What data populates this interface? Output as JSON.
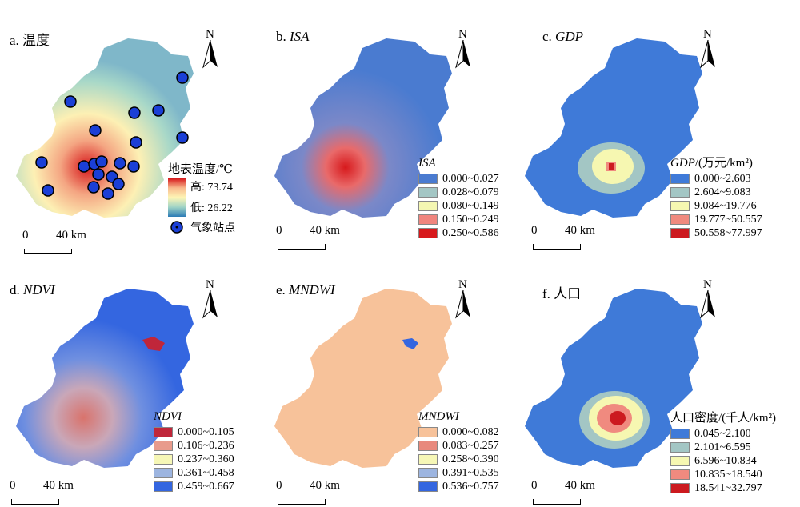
{
  "figure": {
    "panels": [
      {
        "id": "a",
        "label": "a. ",
        "title": "温度",
        "italic": false,
        "legend": {
          "title": "地表温度/℃",
          "high": "高: 73.74",
          "low": "低: 26.22",
          "station": "气象站点"
        }
      },
      {
        "id": "b",
        "label": "b. ",
        "title": "ISA",
        "italic": true,
        "legend": {
          "title": "ISA",
          "title_suffix": "",
          "classes": [
            "0.000~0.027",
            "0.028~0.079",
            "0.080~0.149",
            "0.150~0.249",
            "0.250~0.586"
          ],
          "colors": [
            "#4a7bd0",
            "#a3c6c4",
            "#f4f7b2",
            "#f0857e",
            "#d7191c"
          ]
        }
      },
      {
        "id": "c",
        "label": "c. ",
        "title": "GDP",
        "italic": true,
        "legend": {
          "title": "GDP",
          "title_suffix": "/(万元/km²)",
          "classes": [
            "0.000~2.603",
            "2.604~9.083",
            "9.084~19.776",
            "19.777~50.557",
            "50.558~77.997"
          ],
          "colors": [
            "#3f7ad8",
            "#a3c6c4",
            "#f6f7b1",
            "#f08a7f",
            "#cc1a1f"
          ]
        }
      },
      {
        "id": "d",
        "label": "d. ",
        "title": "NDVI",
        "italic": true,
        "legend": {
          "title": "NDVI",
          "title_suffix": "",
          "classes": [
            "0.000~0.105",
            "0.106~0.236",
            "0.237~0.360",
            "0.361~0.458",
            "0.459~0.667"
          ],
          "colors": [
            "#c0263a",
            "#e89b8c",
            "#f6f7b6",
            "#9db5e0",
            "#3466e0"
          ]
        }
      },
      {
        "id": "e",
        "label": "e. ",
        "title": "MNDWI",
        "italic": true,
        "legend": {
          "title": "MNDWI",
          "title_suffix": "",
          "classes": [
            "0.000~0.082",
            "0.083~0.257",
            "0.258~0.390",
            "0.391~0.535",
            "0.536~0.757"
          ],
          "colors": [
            "#f7c29a",
            "#e8897d",
            "#f6f7b6",
            "#9db5e0",
            "#3466e0"
          ]
        }
      },
      {
        "id": "f",
        "label": "f. ",
        "title": "人口",
        "italic": false,
        "legend": {
          "title": "人口密度/(千人/km²)",
          "title_suffix": "",
          "classes": [
            "0.045~2.100",
            "2.101~6.595",
            "6.596~10.834",
            "10.835~18.540",
            "18.541~32.797"
          ],
          "colors": [
            "#3f7ad8",
            "#a3c6c4",
            "#f6f7b1",
            "#f08a7f",
            "#cc1a1f"
          ]
        }
      }
    ],
    "north_label": "N",
    "scale": {
      "zero": "0",
      "dist": "40 km"
    }
  }
}
